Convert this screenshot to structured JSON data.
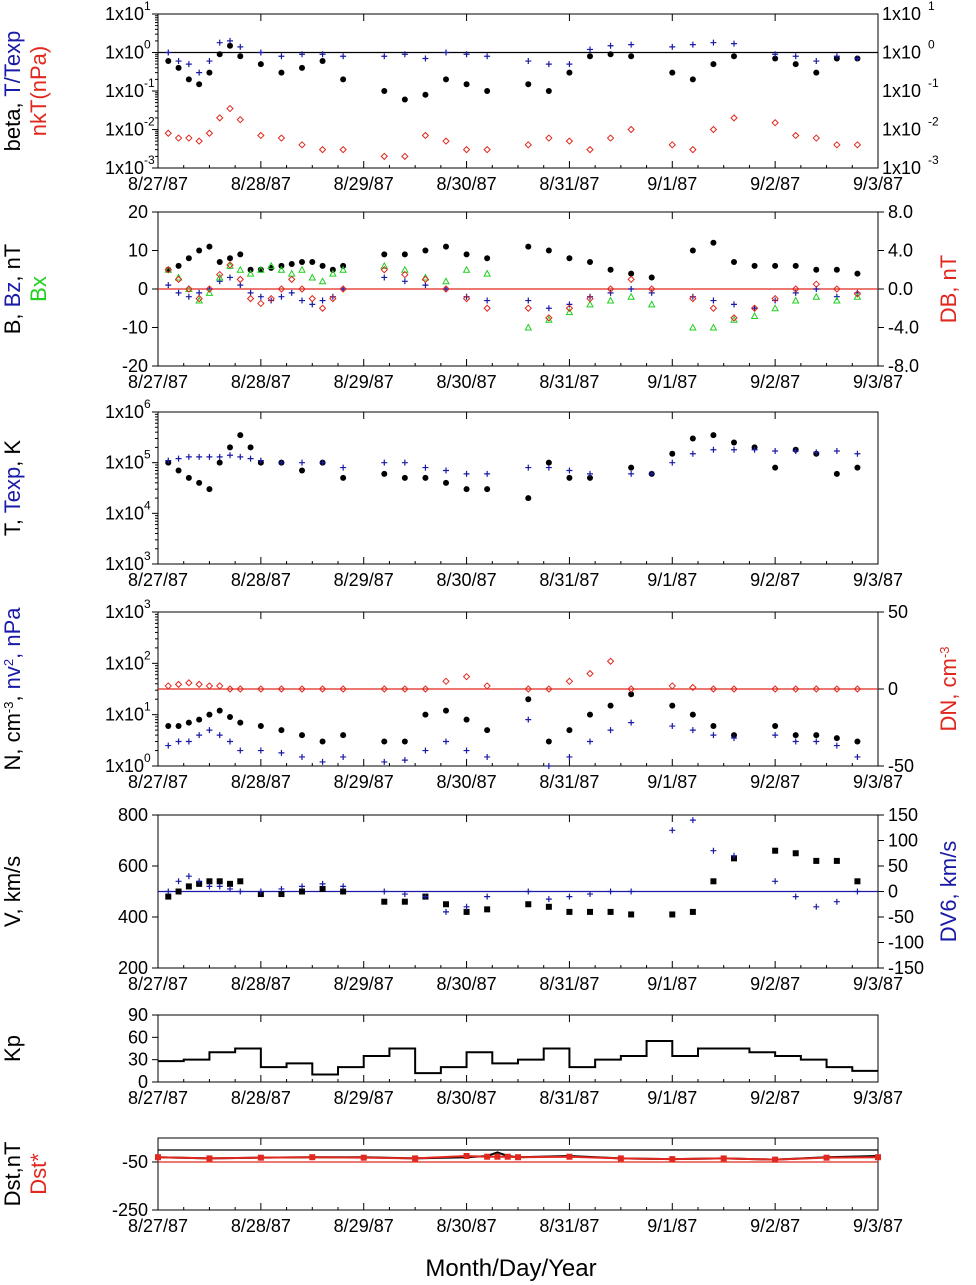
{
  "colors": {
    "black": "#000000",
    "blue": "#1a1aa8",
    "red": "#e0281e",
    "green": "#1fd01f"
  },
  "x_ticks": [
    "8/27/87",
    "8/28/87",
    "8/29/87",
    "8/30/87",
    "8/31/87",
    "9/1/87",
    "9/2/87",
    "9/3/87"
  ],
  "xaxis_title": "Month/Day/Year",
  "chart_data": [
    {
      "id": "beta",
      "type": "scatter",
      "yscale": "log",
      "ylim": [
        0.001,
        10
      ],
      "ytick_labels": [
        "1x10",
        "1x10",
        "1x10",
        "1x10",
        "1x10"
      ],
      "ytick_exps": [
        "1",
        "0",
        "-1",
        "-2",
        "-3"
      ],
      "ylabel_parts": [
        [
          "beta, ",
          "black"
        ],
        [
          "T/Texp",
          "blue"
        ]
      ],
      "ylabel2_parts": [
        [
          "nkT(nPa)",
          "red"
        ]
      ],
      "x": [
        0.1,
        0.2,
        0.3,
        0.4,
        0.5,
        0.6,
        0.7,
        0.8,
        1.0,
        1.2,
        1.4,
        1.6,
        1.8,
        2.2,
        2.4,
        2.6,
        2.8,
        3.0,
        3.2,
        3.6,
        3.8,
        4.0,
        4.2,
        4.4,
        4.6,
        5.0,
        5.2,
        5.4,
        5.6,
        6.0,
        6.2,
        6.4,
        6.6,
        6.8
      ],
      "series": [
        {
          "color": "black",
          "marker": "dot",
          "values": [
            0.6,
            0.4,
            0.2,
            0.15,
            0.3,
            0.9,
            1.5,
            0.8,
            0.5,
            0.3,
            0.4,
            0.6,
            0.2,
            0.1,
            0.06,
            0.08,
            0.2,
            0.15,
            0.1,
            0.15,
            0.1,
            0.3,
            0.8,
            0.9,
            0.8,
            0.3,
            0.2,
            0.5,
            0.8,
            0.7,
            0.5,
            0.3,
            0.7,
            0.7
          ]
        },
        {
          "color": "blue",
          "marker": "plus",
          "values": [
            1.0,
            0.6,
            0.5,
            0.3,
            0.6,
            1.8,
            2.0,
            1.4,
            1.0,
            0.8,
            0.9,
            0.9,
            0.8,
            0.8,
            0.9,
            0.7,
            1.0,
            0.9,
            0.8,
            0.6,
            0.5,
            0.5,
            1.2,
            1.5,
            1.6,
            1.4,
            1.6,
            1.8,
            1.7,
            0.9,
            0.8,
            0.6,
            0.8,
            0.7
          ]
        },
        {
          "color": "red",
          "marker": "diamond",
          "values": [
            0.008,
            0.006,
            0.006,
            0.005,
            0.008,
            0.02,
            0.035,
            0.018,
            0.007,
            0.006,
            0.004,
            0.003,
            0.003,
            0.002,
            0.002,
            0.007,
            0.005,
            0.003,
            0.003,
            0.004,
            0.006,
            0.005,
            0.003,
            0.006,
            0.01,
            0.004,
            0.003,
            0.01,
            0.02,
            0.015,
            0.007,
            0.006,
            0.004,
            0.004
          ]
        }
      ],
      "hlines": [
        {
          "y": 1,
          "color": "black"
        }
      ]
    },
    {
      "id": "B",
      "type": "scatter",
      "ylim": [
        -20,
        20
      ],
      "ytick_labels": [
        "20",
        "10",
        "0",
        "-10",
        "-20"
      ],
      "y2lim": [
        -8,
        8
      ],
      "y2tick_labels": [
        "8.0",
        "4.0",
        "0.0",
        "-4.0",
        "-8.0"
      ],
      "ylabel_parts": [
        [
          "B, ",
          "black"
        ],
        [
          "Bz",
          "blue"
        ],
        [
          ", nT",
          "black"
        ]
      ],
      "ylabel2_parts": [
        [
          "Bx",
          "green"
        ]
      ],
      "ylabel_right_parts": [
        [
          "DB, nT",
          "red"
        ]
      ],
      "x": [
        0.1,
        0.2,
        0.3,
        0.4,
        0.5,
        0.6,
        0.7,
        0.8,
        0.9,
        1.0,
        1.1,
        1.2,
        1.3,
        1.4,
        1.5,
        1.6,
        1.7,
        1.8,
        2.2,
        2.4,
        2.6,
        2.8,
        3.0,
        3.2,
        3.6,
        3.8,
        4.0,
        4.2,
        4.4,
        4.6,
        4.8,
        5.2,
        5.4,
        5.6,
        5.8,
        6.0,
        6.2,
        6.4,
        6.6,
        6.8
      ],
      "series": [
        {
          "color": "black",
          "marker": "dot",
          "values": [
            5,
            6,
            8,
            10,
            11,
            7,
            8,
            9,
            5,
            5,
            5.5,
            6,
            6.5,
            7,
            7,
            6,
            5,
            6,
            9,
            9,
            10,
            11,
            9,
            8,
            11,
            10,
            8,
            7,
            5,
            4,
            3,
            10,
            12,
            7,
            6,
            6,
            6,
            5,
            5,
            4
          ]
        },
        {
          "color": "blue",
          "marker": "plus",
          "values": [
            1,
            -1,
            -2,
            -1,
            0,
            2,
            3,
            1,
            -1,
            -2,
            -3,
            -2,
            -1,
            -3,
            -4,
            -3,
            -2,
            0,
            3,
            2,
            1,
            0,
            -2,
            -3,
            -3,
            -5,
            -4,
            -2,
            -1,
            0,
            -1,
            -2,
            -3,
            -4,
            -5,
            -3,
            -1,
            0,
            -2,
            -1
          ]
        },
        {
          "color": "green",
          "marker": "triangle",
          "values": [
            5,
            3,
            0,
            -3,
            -1,
            3,
            6,
            5,
            4,
            5,
            6,
            5,
            4,
            5,
            3,
            2,
            4,
            5,
            6,
            5,
            3,
            2,
            5,
            4,
            -10,
            -8,
            -6,
            -4,
            -3,
            -2,
            -4,
            -10,
            -10,
            -8,
            -7,
            -5,
            -3,
            -2,
            -3,
            -2
          ]
        },
        {
          "color": "red",
          "marker": "diamond",
          "values": [
            2,
            1,
            0,
            -1,
            0,
            1.5,
            2.5,
            1,
            -1,
            -1.5,
            -1,
            0,
            1,
            0,
            -1,
            -2,
            -1,
            0,
            2,
            1.5,
            1,
            0,
            -1,
            -2,
            -2,
            -3,
            -2,
            -1,
            0,
            1,
            0,
            -1,
            -2,
            -3,
            -2,
            -1,
            0,
            0.5,
            0,
            -0.5
          ]
        }
      ],
      "hlines": [
        {
          "y": 0,
          "color": "red"
        }
      ]
    },
    {
      "id": "T",
      "type": "scatter",
      "yscale": "log",
      "ylim": [
        1000,
        1000000
      ],
      "ytick_labels": [
        "1x10",
        "1x10",
        "1x10",
        "1x10"
      ],
      "ytick_exps": [
        "6",
        "5",
        "4",
        "3"
      ],
      "ylabel_parts": [
        [
          "T, ",
          "black"
        ],
        [
          "Texp",
          "blue"
        ],
        [
          ", K",
          "black"
        ]
      ],
      "x": [
        0.1,
        0.2,
        0.3,
        0.4,
        0.5,
        0.6,
        0.7,
        0.8,
        0.9,
        1.0,
        1.2,
        1.4,
        1.6,
        1.8,
        2.2,
        2.4,
        2.6,
        2.8,
        3.0,
        3.2,
        3.6,
        3.8,
        4.0,
        4.2,
        4.6,
        4.8,
        5.0,
        5.2,
        5.4,
        5.6,
        5.8,
        6.0,
        6.2,
        6.4,
        6.6,
        6.8
      ],
      "series": [
        {
          "color": "black",
          "marker": "dot",
          "values": [
            100000,
            70000,
            50000,
            40000,
            30000,
            100000,
            200000,
            350000,
            200000,
            100000,
            100000,
            70000,
            100000,
            50000,
            60000,
            50000,
            50000,
            40000,
            30000,
            30000,
            20000,
            100000,
            50000,
            50000,
            80000,
            60000,
            150000,
            300000,
            350000,
            250000,
            200000,
            80000,
            180000,
            150000,
            60000,
            80000
          ]
        },
        {
          "color": "blue",
          "marker": "plus",
          "values": [
            110000,
            120000,
            130000,
            130000,
            130000,
            130000,
            140000,
            130000,
            120000,
            110000,
            100000,
            100000,
            100000,
            80000,
            100000,
            100000,
            80000,
            70000,
            60000,
            60000,
            80000,
            80000,
            70000,
            60000,
            60000,
            60000,
            100000,
            150000,
            180000,
            180000,
            180000,
            170000,
            170000,
            160000,
            170000,
            150000
          ]
        }
      ]
    },
    {
      "id": "N",
      "type": "scatter",
      "yscale": "log",
      "ylim": [
        1,
        1000
      ],
      "ytick_labels": [
        "1x10",
        "1x10",
        "1x10",
        "1x10"
      ],
      "ytick_exps": [
        "3",
        "2",
        "1",
        "0"
      ],
      "y2lim": [
        -50,
        50
      ],
      "y2tick_labels": [
        "50",
        "0",
        "-50"
      ],
      "ylabel_parts": [
        [
          "N, cm",
          "black"
        ],
        [
          "-3",
          "black",
          "sup"
        ],
        [
          ", ",
          "black"
        ],
        [
          "nv",
          "blue"
        ],
        [
          "2",
          "blue",
          "sup"
        ],
        [
          ", nPa",
          "blue"
        ]
      ],
      "ylabel_right_parts": [
        [
          "DN, cm",
          "red"
        ],
        [
          "-3",
          "red",
          "sup"
        ]
      ],
      "x": [
        0.1,
        0.2,
        0.3,
        0.4,
        0.5,
        0.6,
        0.7,
        0.8,
        1.0,
        1.2,
        1.4,
        1.6,
        1.8,
        2.2,
        2.4,
        2.6,
        2.8,
        3.0,
        3.2,
        3.6,
        3.8,
        4.0,
        4.2,
        4.4,
        4.6,
        5.0,
        5.2,
        5.4,
        5.6,
        6.0,
        6.2,
        6.4,
        6.6,
        6.8
      ],
      "series": [
        {
          "color": "black",
          "marker": "dot",
          "values": [
            6,
            6,
            7,
            8,
            10,
            12,
            9,
            7,
            6,
            5,
            4,
            3,
            4,
            3,
            3,
            10,
            12,
            8,
            5,
            20,
            3,
            5,
            10,
            15,
            25,
            15,
            10,
            6,
            4,
            6,
            4,
            4,
            3.5,
            3
          ]
        },
        {
          "color": "blue",
          "marker": "plus",
          "values": [
            2.5,
            3,
            3,
            4,
            5,
            4,
            3,
            2,
            2,
            1.8,
            1.5,
            1.2,
            1.5,
            1.2,
            1.3,
            2,
            3,
            2,
            1.5,
            8,
            1,
            1.5,
            3,
            5,
            7,
            6,
            5,
            4,
            3.5,
            4,
            3,
            3,
            2.5,
            1.5
          ]
        },
        {
          "color": "red",
          "marker": "diamond",
          "values": [
            2,
            3,
            4,
            3,
            2,
            2,
            0,
            0,
            0,
            0,
            0,
            0,
            0,
            0,
            0,
            0,
            5,
            8,
            2,
            0,
            0,
            5,
            10,
            18,
            0,
            2,
            1,
            0,
            0,
            0,
            0,
            0,
            0,
            0
          ]
        }
      ],
      "hlines": [
        {
          "y2": 0,
          "color": "red"
        }
      ]
    },
    {
      "id": "V",
      "type": "scatter",
      "ylim": [
        200,
        800
      ],
      "ytick_labels": [
        "800",
        "600",
        "400",
        "200"
      ],
      "y2lim": [
        -150,
        150
      ],
      "y2tick_labels": [
        "150",
        "100",
        "50",
        "0",
        "-50",
        "-100",
        "-150"
      ],
      "ylabel_parts": [
        [
          "V, km/s",
          "black"
        ]
      ],
      "ylabel_right_parts": [
        [
          "DV6, km/s",
          "blue"
        ]
      ],
      "x": [
        0.1,
        0.2,
        0.3,
        0.4,
        0.5,
        0.6,
        0.7,
        0.8,
        1.0,
        1.2,
        1.4,
        1.6,
        1.8,
        2.2,
        2.4,
        2.6,
        2.8,
        3.0,
        3.2,
        3.6,
        3.8,
        4.0,
        4.2,
        4.4,
        4.6,
        5.0,
        5.2,
        5.4,
        5.6,
        6.0,
        6.2,
        6.4,
        6.6,
        6.8
      ],
      "series": [
        {
          "color": "black",
          "marker": "square",
          "values": [
            480,
            500,
            520,
            530,
            540,
            540,
            530,
            540,
            490,
            490,
            500,
            510,
            500,
            460,
            460,
            480,
            450,
            420,
            430,
            450,
            440,
            420,
            420,
            420,
            410,
            410,
            420,
            540,
            630,
            660,
            650,
            620,
            620,
            540
          ]
        },
        {
          "color": "blue",
          "marker": "plus",
          "values": [
            0,
            20,
            30,
            20,
            10,
            10,
            5,
            0,
            0,
            5,
            10,
            15,
            10,
            0,
            -5,
            -10,
            -40,
            -30,
            -10,
            0,
            -15,
            -10,
            -5,
            0,
            0,
            120,
            140,
            80,
            70,
            20,
            -10,
            -30,
            -20,
            0
          ]
        }
      ],
      "hlines": [
        {
          "y2": 0,
          "color": "blue"
        }
      ]
    },
    {
      "id": "Kp",
      "type": "line",
      "ylim": [
        0,
        90
      ],
      "ytick_labels": [
        "90",
        "60",
        "30",
        "0"
      ],
      "ylabel_parts": [
        [
          "Kp",
          "black"
        ]
      ],
      "x": [
        0,
        0.25,
        0.5,
        0.75,
        1.0,
        1.25,
        1.5,
        1.75,
        2.0,
        2.25,
        2.5,
        2.75,
        3.0,
        3.25,
        3.5,
        3.75,
        4.0,
        4.25,
        4.5,
        4.75,
        5.0,
        5.25,
        5.5,
        5.75,
        6.0,
        6.25,
        6.5,
        6.75,
        7.0
      ],
      "series": [
        {
          "color": "black",
          "values": [
            28,
            30,
            40,
            45,
            20,
            25,
            10,
            20,
            35,
            45,
            12,
            20,
            40,
            25,
            30,
            45,
            20,
            30,
            35,
            55,
            35,
            45,
            45,
            40,
            35,
            30,
            20,
            15,
            15
          ]
        }
      ]
    },
    {
      "id": "Dst",
      "type": "line",
      "ylim": [
        -250,
        50
      ],
      "ytick_labels": [
        "-50",
        "-250"
      ],
      "ylabel_parts": [
        [
          "Dst,nT",
          "black"
        ]
      ],
      "ylabel2_parts": [
        [
          "Dst*",
          "red"
        ]
      ],
      "x": [
        0,
        0.5,
        1.0,
        1.5,
        2.0,
        2.5,
        3.0,
        3.2,
        3.3,
        3.4,
        3.5,
        4.0,
        4.5,
        5.0,
        5.5,
        6.0,
        6.5,
        7.0
      ],
      "series": [
        {
          "color": "black",
          "marker": "line",
          "values": [
            -30,
            -35,
            -32,
            -30,
            -30,
            -35,
            -30,
            -25,
            -10,
            -25,
            -30,
            -25,
            -35,
            -38,
            -35,
            -40,
            -30,
            -25
          ]
        },
        {
          "color": "red",
          "marker": "square",
          "values": [
            -30,
            -35,
            -32,
            -30,
            -32,
            -35,
            -25,
            -28,
            -28,
            -28,
            -30,
            -28,
            -35,
            -38,
            -35,
            -40,
            -32,
            -30
          ]
        }
      ],
      "hlines": [
        {
          "y": 0,
          "color": "black"
        },
        {
          "y": -50,
          "color": "red"
        }
      ]
    }
  ]
}
